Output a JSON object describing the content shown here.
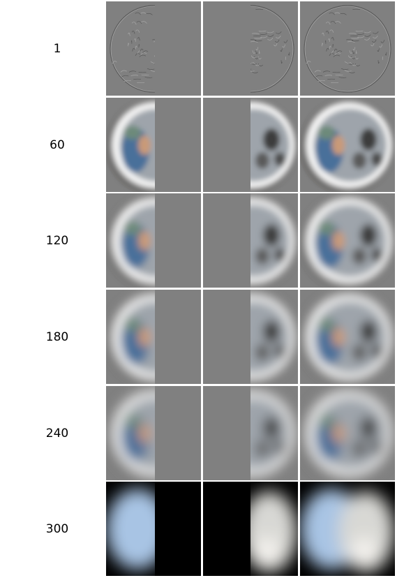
{
  "rows": [
    {
      "label": "1",
      "style": "edge"
    },
    {
      "label": "60",
      "style": "gray"
    },
    {
      "label": "120",
      "style": "gray"
    },
    {
      "label": "180",
      "style": "gray"
    },
    {
      "label": "240",
      "style": "gray"
    },
    {
      "label": "300",
      "style": "dark"
    }
  ],
  "colors": {
    "gray_background": "#808080",
    "dark_background": "#000000",
    "earth_blue": "#4a6f9a",
    "earth_tan": "#c99a78",
    "rim_white": "#f2f2f2"
  }
}
